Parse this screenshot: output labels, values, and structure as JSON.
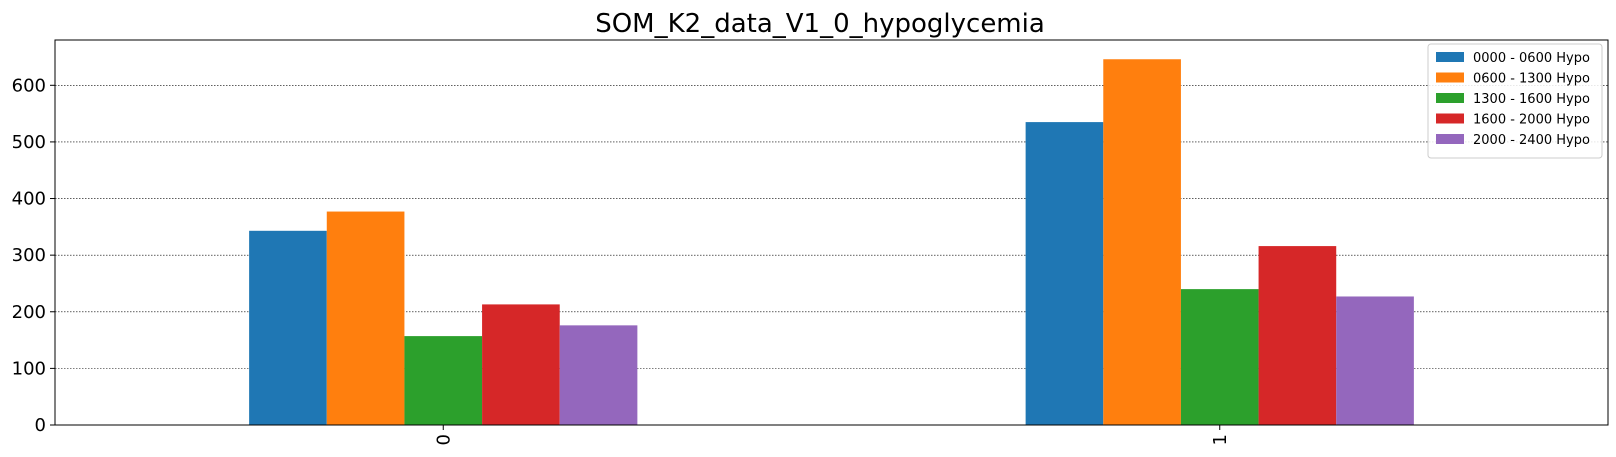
{
  "chart_data": {
    "type": "bar",
    "title": "SOM_K2_data_V1_0_hypoglycemia",
    "xlabel": "",
    "ylabel": "",
    "categories": [
      "0",
      "1"
    ],
    "ylim": [
      0,
      680
    ],
    "yticks": [
      0,
      100,
      200,
      300,
      400,
      500,
      600
    ],
    "grid": "horizontal dotted",
    "legend_position": "top-right",
    "series": [
      {
        "name": "0000 - 0600 Hypo",
        "color": "#1f77b4",
        "values": [
          343,
          535
        ]
      },
      {
        "name": "0600 - 1300 Hypo",
        "color": "#ff7f0e",
        "values": [
          377,
          646
        ]
      },
      {
        "name": "1300 - 1600 Hypo",
        "color": "#2ca02c",
        "values": [
          157,
          240
        ]
      },
      {
        "name": "1600 - 2000 Hypo",
        "color": "#d62728",
        "values": [
          213,
          316
        ]
      },
      {
        "name": "2000 - 2400 Hypo",
        "color": "#9467bd",
        "values": [
          176,
          227
        ]
      }
    ]
  }
}
